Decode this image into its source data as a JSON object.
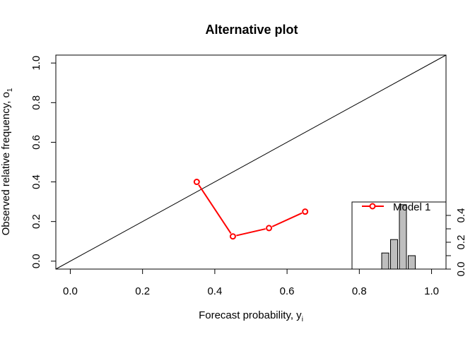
{
  "chart_data": {
    "type": "line",
    "title": "Alternative plot",
    "xlabel": "Forecast probability, y",
    "xlabel_sub": "i",
    "ylabel": "Observed relative frequency, o",
    "ylabel_sub": "1",
    "xlim": [
      -0.04,
      1.04
    ],
    "ylim": [
      -0.04,
      1.04
    ],
    "x_ticks": [
      "0.0",
      "0.2",
      "0.4",
      "0.6",
      "0.8",
      "1.0"
    ],
    "y_ticks": [
      "0.0",
      "0.2",
      "0.4",
      "0.6",
      "0.8",
      "1.0"
    ],
    "grid": false,
    "diagonal_reference_line": true,
    "series": [
      {
        "name": "Model 1",
        "color": "#ff0000",
        "x": [
          0.35,
          0.45,
          0.55,
          0.65
        ],
        "y": [
          0.4,
          0.125,
          0.167,
          0.25
        ]
      }
    ],
    "legend_position": "bottom-right",
    "inset_histogram": {
      "bin_centers": [
        0.35,
        0.45,
        0.55,
        0.65
      ],
      "values": [
        0.12,
        0.22,
        0.48,
        0.1
      ],
      "ylim": [
        0,
        0.5
      ],
      "y_ticks": [
        "0.0",
        "0.1",
        "0.2",
        "0.3",
        "0.4"
      ],
      "y_tick_labels_shown": [
        "0.0",
        "0.2",
        "0.4"
      ],
      "fill_color": "#bebebe"
    }
  }
}
